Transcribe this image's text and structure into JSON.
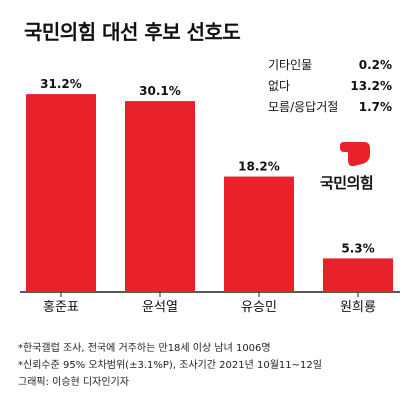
{
  "title": "국민의힘 대선 후보 선호도",
  "other_responses": [
    {
      "label": "기타인물",
      "value": "0.2%"
    },
    {
      "label": "없다",
      "value": "13.2%"
    },
    {
      "label": "모름/응답거절",
      "value": "1.7%"
    }
  ],
  "logo_text": "국민의힘",
  "footnotes": {
    "line1": "*한국갤럽 조사, 전국에 거주하는 만18세 이상 남녀 1006명",
    "line2": "*신뢰수준 95% 오차범위(±3.1%P), 조사기간 2021년 10월11~12일",
    "line3": "그래픽: 이승현 디자인기자"
  },
  "colors": {
    "bar": "#e8212b",
    "axis": "#222222",
    "logo": "#e8212b"
  },
  "chart_data": {
    "type": "bar",
    "categories": [
      "홍준표",
      "윤석열",
      "유승민",
      "원희룡"
    ],
    "values": [
      31.2,
      30.1,
      18.2,
      5.3
    ],
    "value_labels": [
      "31.2%",
      "30.1%",
      "18.2%",
      "5.3%"
    ],
    "title": "국민의힘 대선 후보 선호도",
    "xlabel": "",
    "ylabel": "",
    "ylim": [
      0,
      35
    ]
  }
}
